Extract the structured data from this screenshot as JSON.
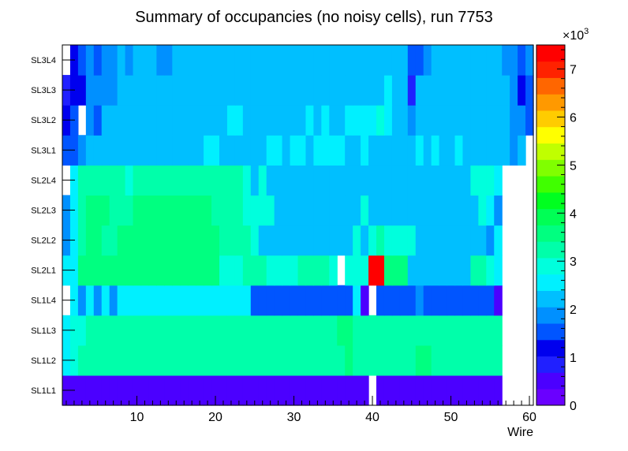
{
  "chart_data": {
    "type": "heatmap",
    "title": "Summary of occupancies (no noisy cells), run 7753",
    "xlabel": "Wire",
    "ylabel": "",
    "x_range": [
      0.5,
      60.5
    ],
    "x_ticks": [
      "10",
      "20",
      "30",
      "40",
      "50",
      "60"
    ],
    "y_categories": [
      "SL1L1",
      "SL1L2",
      "SL1L3",
      "SL1L4",
      "SL2L1",
      "SL2L2",
      "SL2L3",
      "SL2L4",
      "SL3L1",
      "SL3L2",
      "SL3L3",
      "SL3L4"
    ],
    "z_range": [
      0,
      7500
    ],
    "z_multiplier_label": "×10",
    "z_multiplier_exponent": "3",
    "z_ticks": [
      "0",
      "1",
      "2",
      "3",
      "4",
      "5",
      "6",
      "7"
    ],
    "palette": [
      "#6a00ff",
      "#4b00ff",
      "#2020ff",
      "#0000ee",
      "#0055ff",
      "#0090ff",
      "#00bfff",
      "#00f0ff",
      "#00ffdd",
      "#00ffaa",
      "#00ff80",
      "#00ff55",
      "#00ff20",
      "#40ff00",
      "#80ff00",
      "#c0ff00",
      "#ffff00",
      "#ffcc00",
      "#ff9900",
      "#ff6600",
      "#ff2200",
      "#ff0000"
    ],
    "grid": false,
    "legend": "colorbar-right",
    "values": [
      [
        400,
        400,
        400,
        400,
        400,
        400,
        400,
        400,
        400,
        400,
        400,
        400,
        400,
        400,
        400,
        400,
        400,
        400,
        400,
        400,
        400,
        400,
        400,
        400,
        400,
        400,
        400,
        400,
        400,
        400,
        400,
        400,
        400,
        400,
        400,
        400,
        400,
        400,
        400,
        null,
        400,
        400,
        400,
        400,
        400,
        400,
        400,
        400,
        400,
        400,
        400,
        400,
        400,
        400,
        400,
        400,
        null,
        null,
        null,
        null
      ],
      [
        2600,
        2900,
        3100,
        3100,
        3100,
        3100,
        3100,
        3100,
        3100,
        3100,
        3100,
        3100,
        3100,
        3100,
        3100,
        3100,
        3100,
        3100,
        3100,
        3100,
        3100,
        3100,
        3300,
        3100,
        3300,
        3300,
        3100,
        3100,
        3300,
        3100,
        3300,
        3300,
        3300,
        3300,
        3100,
        3300,
        3600,
        3300,
        3300,
        3300,
        3100,
        3100,
        3100,
        3100,
        3300,
        3500,
        3500,
        3300,
        3100,
        3100,
        3100,
        3100,
        3100,
        3100,
        3100,
        3100,
        null,
        null,
        null,
        null
      ],
      [
        2700,
        3000,
        3000,
        3100,
        3100,
        3100,
        3100,
        3100,
        3100,
        3100,
        3100,
        3100,
        3100,
        3100,
        3100,
        3100,
        3100,
        3100,
        3100,
        3100,
        3100,
        3100,
        3300,
        3300,
        3100,
        3100,
        3300,
        3300,
        3100,
        3100,
        3100,
        3100,
        3100,
        3100,
        3300,
        3500,
        3600,
        3400,
        3100,
        3100,
        3100,
        3100,
        3100,
        3100,
        3300,
        3300,
        3100,
        3100,
        3100,
        3100,
        3100,
        3100,
        3100,
        3100,
        3100,
        3100,
        null,
        null,
        null,
        null
      ],
      [
        null,
        2400,
        1900,
        2400,
        1900,
        2400,
        1900,
        2400,
        2700,
        2700,
        2700,
        2700,
        2700,
        2700,
        2700,
        2700,
        2700,
        2700,
        2700,
        2400,
        2700,
        2400,
        2400,
        2700,
        1700,
        1700,
        1700,
        1700,
        1700,
        1700,
        1700,
        1700,
        1700,
        1700,
        1700,
        1700,
        1500,
        2400,
        500,
        null,
        1700,
        1700,
        1700,
        1700,
        1700,
        2000,
        1500,
        1500,
        1500,
        1500,
        1500,
        1500,
        1500,
        1500,
        1500,
        500,
        null,
        null,
        null,
        null
      ],
      [
        2500,
        2700,
        3500,
        3500,
        3500,
        3500,
        3500,
        3500,
        3500,
        3500,
        3700,
        3700,
        3700,
        3500,
        3500,
        3500,
        3500,
        3500,
        3500,
        3500,
        2800,
        2800,
        2800,
        3100,
        3100,
        3100,
        2800,
        2800,
        2800,
        2800,
        3100,
        3100,
        3100,
        3100,
        2800,
        null,
        2800,
        2800,
        2800,
        7800,
        7800,
        3700,
        3700,
        3700,
        2300,
        2300,
        2300,
        2300,
        2300,
        2300,
        2300,
        2300,
        3200,
        3200,
        2800,
        2400,
        null,
        null,
        null,
        null
      ],
      [
        2000,
        2700,
        3300,
        3600,
        3600,
        3300,
        3300,
        3500,
        3600,
        3600,
        3600,
        3600,
        3600,
        3600,
        3600,
        3600,
        3600,
        3600,
        3600,
        3600,
        3300,
        3300,
        3100,
        3100,
        2800,
        2300,
        2300,
        2300,
        2300,
        2300,
        2300,
        2300,
        2300,
        2300,
        2300,
        2300,
        2300,
        2800,
        2300,
        2800,
        3100,
        2800,
        2800,
        2800,
        2800,
        2300,
        2300,
        2300,
        2300,
        2300,
        2300,
        2300,
        2300,
        2300,
        2000,
        2600,
        null,
        null,
        null,
        null
      ],
      [
        2000,
        2600,
        3300,
        3500,
        3500,
        3500,
        3100,
        3100,
        3100,
        3500,
        3500,
        3500,
        3500,
        3500,
        3500,
        3500,
        3500,
        3500,
        3500,
        3100,
        3100,
        3100,
        3100,
        2800,
        2800,
        2800,
        2800,
        2300,
        2300,
        2300,
        2300,
        2300,
        2300,
        2300,
        2300,
        2300,
        2300,
        2300,
        2800,
        2300,
        2300,
        2300,
        2300,
        2300,
        2300,
        2300,
        2300,
        2300,
        2300,
        2300,
        2300,
        2300,
        2300,
        2800,
        2600,
        2000,
        null,
        null,
        null,
        null
      ],
      [
        null,
        2600,
        3300,
        3300,
        3300,
        3300,
        3300,
        3100,
        2800,
        3300,
        3300,
        3300,
        3300,
        3300,
        3300,
        3300,
        3300,
        3100,
        3100,
        3100,
        3100,
        3100,
        3100,
        2800,
        2300,
        2800,
        2300,
        2300,
        2300,
        2300,
        2300,
        2300,
        2300,
        2300,
        2300,
        2300,
        2300,
        2300,
        2300,
        2300,
        2300,
        2300,
        2300,
        2300,
        2300,
        2300,
        2300,
        2300,
        2300,
        2300,
        2300,
        2300,
        2800,
        2800,
        2800,
        2600,
        null,
        null,
        null,
        null
      ],
      [
        1600,
        1600,
        1900,
        2300,
        2300,
        2300,
        2300,
        2300,
        2300,
        2300,
        2300,
        2300,
        2300,
        2300,
        2300,
        2300,
        2300,
        2300,
        2600,
        2600,
        2300,
        2300,
        2300,
        2300,
        2300,
        2300,
        2600,
        2600,
        2300,
        2600,
        2600,
        2300,
        2600,
        2600,
        2600,
        2600,
        2300,
        2300,
        2600,
        2300,
        2300,
        2300,
        2300,
        2300,
        2300,
        2600,
        2300,
        2600,
        2300,
        2300,
        2600,
        2300,
        2300,
        2300,
        2300,
        2300,
        2300,
        1900,
        2300,
        null
      ],
      [
        1100,
        1500,
        null,
        1900,
        1600,
        2300,
        2300,
        2300,
        2300,
        2300,
        2300,
        2300,
        2300,
        2300,
        2300,
        2300,
        2300,
        2300,
        2300,
        2300,
        2300,
        2600,
        2600,
        2300,
        2300,
        2300,
        2300,
        2300,
        2300,
        2300,
        2300,
        2600,
        2300,
        2600,
        2300,
        2300,
        2600,
        2600,
        2600,
        2600,
        2800,
        2600,
        2300,
        2300,
        2000,
        2300,
        2300,
        2300,
        2300,
        2300,
        2300,
        2300,
        2300,
        2300,
        2300,
        2300,
        2300,
        1900,
        1900,
        1600
      ],
      [
        900,
        1200,
        1200,
        1900,
        1900,
        1900,
        1900,
        2300,
        2300,
        2300,
        2300,
        2300,
        2300,
        2300,
        2300,
        2300,
        2300,
        2300,
        2300,
        2300,
        2300,
        2300,
        2300,
        2300,
        2300,
        2300,
        2300,
        2300,
        2300,
        2300,
        2300,
        2300,
        2300,
        2300,
        2300,
        2300,
        2300,
        2300,
        2300,
        2300,
        2300,
        2600,
        2300,
        2300,
        900,
        2300,
        2300,
        2300,
        2300,
        2300,
        2300,
        2300,
        2300,
        2300,
        2300,
        2300,
        2300,
        1900,
        1100,
        1600
      ],
      [
        null,
        1100,
        1400,
        1900,
        1400,
        1900,
        1900,
        2300,
        1900,
        2300,
        2300,
        2300,
        1900,
        1900,
        2300,
        2300,
        2300,
        2300,
        2300,
        2300,
        2300,
        2300,
        2300,
        2300,
        2300,
        2300,
        2300,
        2300,
        2300,
        2300,
        2300,
        2300,
        2300,
        2300,
        2300,
        2300,
        2300,
        2300,
        2300,
        2300,
        2300,
        2300,
        2300,
        2300,
        1700,
        1700,
        1900,
        2300,
        2300,
        2300,
        2300,
        2300,
        2300,
        2300,
        2300,
        2300,
        1900,
        1900,
        1600,
        1900
      ]
    ]
  }
}
